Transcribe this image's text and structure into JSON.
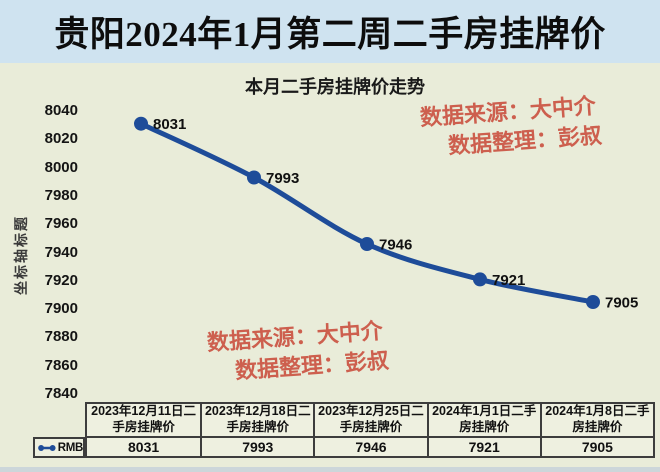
{
  "page": {
    "title": "贵阳2024年1月第二周二手房挂牌价"
  },
  "chart": {
    "title": "本月二手房挂牌价走势",
    "y_axis_title": "坐标轴标题",
    "watermarks": {
      "top_right": [
        "数据来源：大中介",
        "数据整理：彭叔"
      ],
      "bottom_left": [
        "数据来源：大中介",
        "数据整理：彭叔"
      ]
    }
  },
  "chart_data": {
    "type": "line",
    "title": "本月二手房挂牌价走势",
    "ylabel": "坐标轴标题",
    "categories": [
      "2023年12月11日二手房挂牌价",
      "2023年12月18日二手房挂牌价",
      "2023年12月25日二手房挂牌价",
      "2024年1月1日二手房挂牌价",
      "2024年1月8日二手房挂牌价"
    ],
    "series": [
      {
        "name": "RMB",
        "values": [
          8031,
          7993,
          7946,
          7921,
          7905
        ]
      }
    ],
    "data_labels": true,
    "ylim": [
      7840,
      8040
    ],
    "y_ticks": [
      8040,
      8020,
      8000,
      7980,
      7960,
      7940,
      7920,
      7900,
      7880,
      7860,
      7840
    ],
    "grid": false,
    "legend_position": "bottom-left",
    "colors": {
      "line": "#1e4c99",
      "watermark_text": "#cd5f4e",
      "title_bar_bg": "#cfe3f0",
      "chart_bg": "#e9ecd9",
      "table_bg": "#eef0e0",
      "table_border": "#3d3d3d"
    }
  },
  "table": {
    "row_label": "RMB",
    "headers": [
      "2023年12月11日二手房挂牌价",
      "2023年12月18日二手房挂牌价",
      "2023年12月25日二手房挂牌价",
      "2024年1月1日二手房挂牌价",
      "2024年1月8日二手房挂牌价"
    ],
    "values": [
      "8031",
      "7993",
      "7946",
      "7921",
      "7905"
    ]
  }
}
